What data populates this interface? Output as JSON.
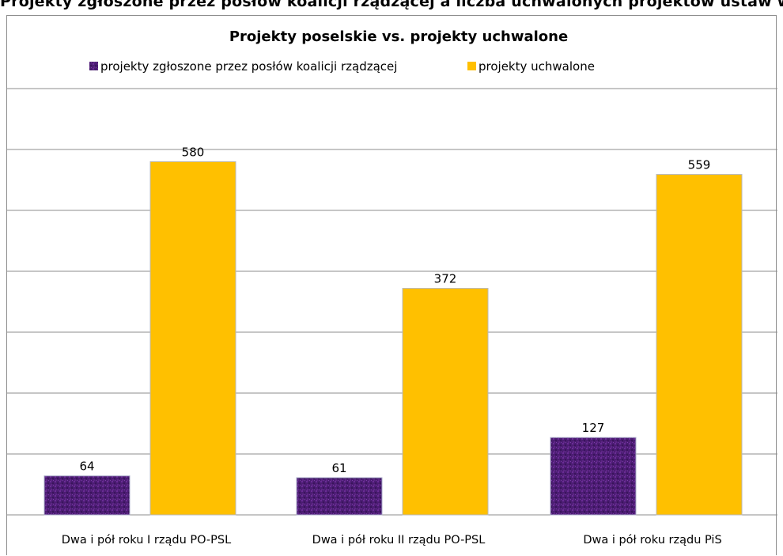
{
  "header_strip": {
    "text": "Projekty zgłoszone przez posłów koalicji rządzącej a liczba uchwalonych projektów ustaw w Sejmie"
  },
  "colors": {
    "series_1": "#4b1d72",
    "series_1_texture": "#6a2c95",
    "series_2": "#ffc000",
    "series_2_border": "#b8b8b8",
    "gridline": "#8c8c8c"
  },
  "chart_data": {
    "type": "bar",
    "title": "Projekty poselskie vs. projekty uchwalone",
    "legend_position": "top",
    "grid": true,
    "categories": [
      "Dwa i pół roku I rządu PO-PSL",
      "Dwa i pół roku II rządu PO-PSL",
      "Dwa i pół roku rządu PiS"
    ],
    "series": [
      {
        "name": "projekty zgłoszone przez posłów koalicji rządzącej",
        "values": [
          64,
          61,
          127
        ]
      },
      {
        "name": "projekty uchwalone",
        "values": [
          580,
          372,
          559
        ]
      }
    ],
    "ylim": [
      0,
      700
    ],
    "y_tick_step": 100,
    "xlabel": "",
    "ylabel": ""
  }
}
